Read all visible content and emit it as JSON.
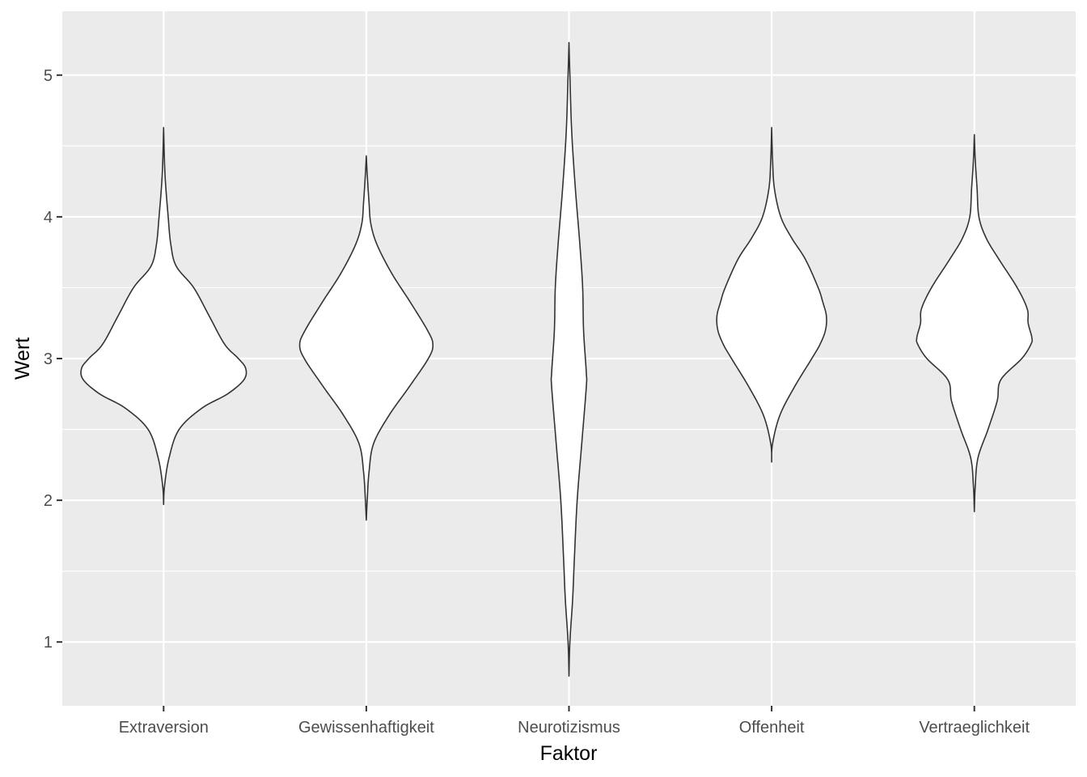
{
  "chart_data": {
    "type": "violin",
    "title": "",
    "xlabel": "Faktor",
    "ylabel": "Wert",
    "ylim": [
      0.55,
      5.45
    ],
    "yticks": [
      1,
      2,
      3,
      4,
      5
    ],
    "grid": true,
    "legend": "none",
    "colors": {
      "panel": "#ebebeb",
      "grid": "#ffffff",
      "outline": "#333333",
      "fill": "#ffffff"
    },
    "categories": [
      "Extraversion",
      "Gewissenhaftigkeit",
      "Neurotizismus",
      "Offenheit",
      "Vertraeglichkeit"
    ],
    "violins": [
      {
        "category": "Extraversion",
        "min": 1.97,
        "max": 4.63,
        "profile": [
          [
            1.97,
            0.0
          ],
          [
            2.1,
            0.01
          ],
          [
            2.3,
            0.06
          ],
          [
            2.5,
            0.17
          ],
          [
            2.65,
            0.42
          ],
          [
            2.75,
            0.7
          ],
          [
            2.85,
            0.88
          ],
          [
            2.93,
            0.9
          ],
          [
            3.0,
            0.82
          ],
          [
            3.1,
            0.67
          ],
          [
            3.3,
            0.5
          ],
          [
            3.5,
            0.33
          ],
          [
            3.65,
            0.14
          ],
          [
            3.8,
            0.08
          ],
          [
            4.0,
            0.05
          ],
          [
            4.3,
            0.015
          ],
          [
            4.63,
            0.0
          ]
        ]
      },
      {
        "category": "Gewissenhaftigkeit",
        "min": 1.86,
        "max": 4.43,
        "profile": [
          [
            1.86,
            0.0
          ],
          [
            2.0,
            0.01
          ],
          [
            2.2,
            0.03
          ],
          [
            2.4,
            0.08
          ],
          [
            2.6,
            0.25
          ],
          [
            2.8,
            0.47
          ],
          [
            3.0,
            0.68
          ],
          [
            3.1,
            0.73
          ],
          [
            3.2,
            0.67
          ],
          [
            3.4,
            0.48
          ],
          [
            3.6,
            0.28
          ],
          [
            3.8,
            0.12
          ],
          [
            3.95,
            0.05
          ],
          [
            4.1,
            0.03
          ],
          [
            4.3,
            0.01
          ],
          [
            4.43,
            0.0
          ]
        ]
      },
      {
        "category": "Neurotizismus",
        "min": 0.76,
        "max": 5.23,
        "profile": [
          [
            0.76,
            0.0
          ],
          [
            1.0,
            0.01
          ],
          [
            1.3,
            0.04
          ],
          [
            1.6,
            0.06
          ],
          [
            2.0,
            0.09
          ],
          [
            2.4,
            0.14
          ],
          [
            2.8,
            0.19
          ],
          [
            2.9,
            0.19
          ],
          [
            3.2,
            0.16
          ],
          [
            3.5,
            0.15
          ],
          [
            3.8,
            0.12
          ],
          [
            4.2,
            0.07
          ],
          [
            4.6,
            0.03
          ],
          [
            5.0,
            0.01
          ],
          [
            5.23,
            0.0
          ]
        ]
      },
      {
        "category": "Offenheit",
        "min": 2.27,
        "max": 4.63,
        "profile": [
          [
            2.27,
            0.0
          ],
          [
            2.4,
            0.01
          ],
          [
            2.6,
            0.09
          ],
          [
            2.8,
            0.25
          ],
          [
            3.0,
            0.44
          ],
          [
            3.1,
            0.53
          ],
          [
            3.2,
            0.59
          ],
          [
            3.3,
            0.6
          ],
          [
            3.4,
            0.56
          ],
          [
            3.5,
            0.51
          ],
          [
            3.7,
            0.37
          ],
          [
            3.85,
            0.22
          ],
          [
            4.0,
            0.1
          ],
          [
            4.2,
            0.03
          ],
          [
            4.4,
            0.01
          ],
          [
            4.63,
            0.0
          ]
        ]
      },
      {
        "category": "Vertraeglichkeit",
        "min": 1.92,
        "max": 4.58,
        "profile": [
          [
            1.92,
            0.0
          ],
          [
            2.1,
            0.01
          ],
          [
            2.3,
            0.04
          ],
          [
            2.5,
            0.15
          ],
          [
            2.7,
            0.25
          ],
          [
            2.85,
            0.29
          ],
          [
            3.0,
            0.52
          ],
          [
            3.1,
            0.62
          ],
          [
            3.15,
            0.63
          ],
          [
            3.25,
            0.59
          ],
          [
            3.35,
            0.58
          ],
          [
            3.5,
            0.47
          ],
          [
            3.7,
            0.27
          ],
          [
            3.85,
            0.13
          ],
          [
            4.0,
            0.05
          ],
          [
            4.2,
            0.03
          ],
          [
            4.4,
            0.01
          ],
          [
            4.58,
            0.0
          ]
        ]
      }
    ]
  }
}
